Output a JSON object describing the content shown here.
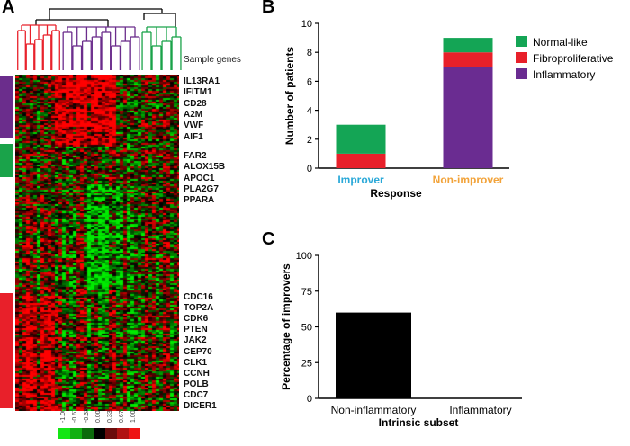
{
  "panels": {
    "a": "A",
    "b": "B",
    "c": "C"
  },
  "heatmap": {
    "sample_genes_label": "Sample genes",
    "genes_top": [
      "IL13RA1",
      "IFITM1",
      "CD28",
      "A2M",
      "VWF",
      "AIF1"
    ],
    "genes_mid": [
      "FAR2",
      "ALOX15B",
      "APOC1",
      "PLA2G7",
      "PPARA"
    ],
    "genes_bottom": [
      "CDC16",
      "TOP2A",
      "CDK6",
      "PTEN",
      "JAK2",
      "CEP70",
      "CLK1",
      "CCNH",
      "POLB",
      "CDC7",
      "DICER1"
    ],
    "color_scale_ticks": [
      "-1.00",
      "-0.67",
      "-0.33",
      "0.00",
      "0.33",
      "0.67",
      "1.00"
    ],
    "cluster_colors": {
      "inflammatory": "#6b2d8c",
      "normal_like": "#1aa34a",
      "fibroproliferative": "#e8202a"
    }
  },
  "chart_data": [
    {
      "type": "bar",
      "stacked": true,
      "title": "",
      "xlabel": "Response",
      "ylabel": "Number of patients",
      "categories": [
        "Improver",
        "Non-improver"
      ],
      "category_colors": [
        "#29a8d8",
        "#f2a33a"
      ],
      "ylim": [
        0,
        10
      ],
      "yticks": [
        0,
        2,
        4,
        6,
        8,
        10
      ],
      "series": [
        {
          "name": "Inflammatory",
          "color": "#6a2c91",
          "values": [
            0,
            7
          ]
        },
        {
          "name": "Fibroproliferative",
          "color": "#e8202a",
          "values": [
            1,
            1
          ]
        },
        {
          "name": "Normal-like",
          "color": "#14a555",
          "values": [
            2,
            1
          ]
        }
      ],
      "legend": [
        "Normal-like",
        "Fibroproliferative",
        "Inflammatory"
      ],
      "legend_position": "top-right"
    },
    {
      "type": "bar",
      "title": "",
      "xlabel": "Intrinsic subset",
      "ylabel": "Percentage of improvers",
      "categories": [
        "Non-inflammatory",
        "Inflammatory"
      ],
      "values": [
        60,
        0
      ],
      "color": "#000000",
      "ylim": [
        0,
        100
      ],
      "yticks": [
        0,
        25,
        50,
        75,
        100
      ]
    }
  ]
}
